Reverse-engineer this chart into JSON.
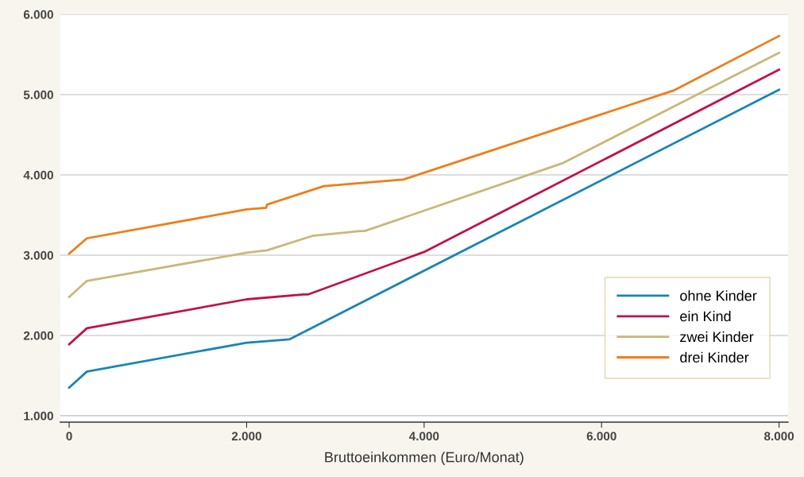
{
  "chart_data": {
    "type": "line",
    "xlabel": "Bruttoeinkommen (Euro/Monat)",
    "xlim": [
      -100,
      8100
    ],
    "ylim": [
      920,
      6000
    ],
    "xticks": [
      {
        "value": 0,
        "label": "0"
      },
      {
        "value": 2000,
        "label": "2.000"
      },
      {
        "value": 4000,
        "label": "4.000"
      },
      {
        "value": 6000,
        "label": "6.000"
      },
      {
        "value": 8000,
        "label": "8.000"
      }
    ],
    "yticks": [
      {
        "value": 1000,
        "label": "1.000"
      },
      {
        "value": 2000,
        "label": "2.000"
      },
      {
        "value": 3000,
        "label": "3.000"
      },
      {
        "value": 4000,
        "label": "4.000"
      },
      {
        "value": 5000,
        "label": "5.000"
      },
      {
        "value": 6000,
        "label": "6.000"
      }
    ],
    "grid": "y",
    "legend": "lower right",
    "marker": "none",
    "line_style": "solid",
    "series": [
      {
        "name": "ohne Kinder",
        "color": "#1a85b5",
        "x": [
          0,
          200,
          2000,
          2480,
          8000
        ],
        "values": [
          1350,
          1550,
          1910,
          1950,
          5060
        ]
      },
      {
        "name": "ein Kind",
        "color": "#c0124a",
        "x": [
          0,
          200,
          2000,
          2640,
          2690,
          4000,
          8000
        ],
        "values": [
          1890,
          2090,
          2450,
          2510,
          2510,
          3040,
          5310
        ]
      },
      {
        "name": "zwei Kinder",
        "color": "#c9b87a",
        "x": [
          0,
          200,
          2000,
          2230,
          2740,
          3280,
          3330,
          5570,
          8000
        ],
        "values": [
          2480,
          2680,
          3030,
          3060,
          3240,
          3300,
          3300,
          4150,
          5520
        ]
      },
      {
        "name": "drei Kinder",
        "color": "#ef7d1a",
        "x": [
          0,
          200,
          2000,
          2220,
          2230,
          2870,
          3730,
          3760,
          6810,
          8000
        ],
        "values": [
          3020,
          3210,
          3570,
          3590,
          3630,
          3860,
          3940,
          3940,
          5050,
          5730
        ]
      }
    ]
  }
}
